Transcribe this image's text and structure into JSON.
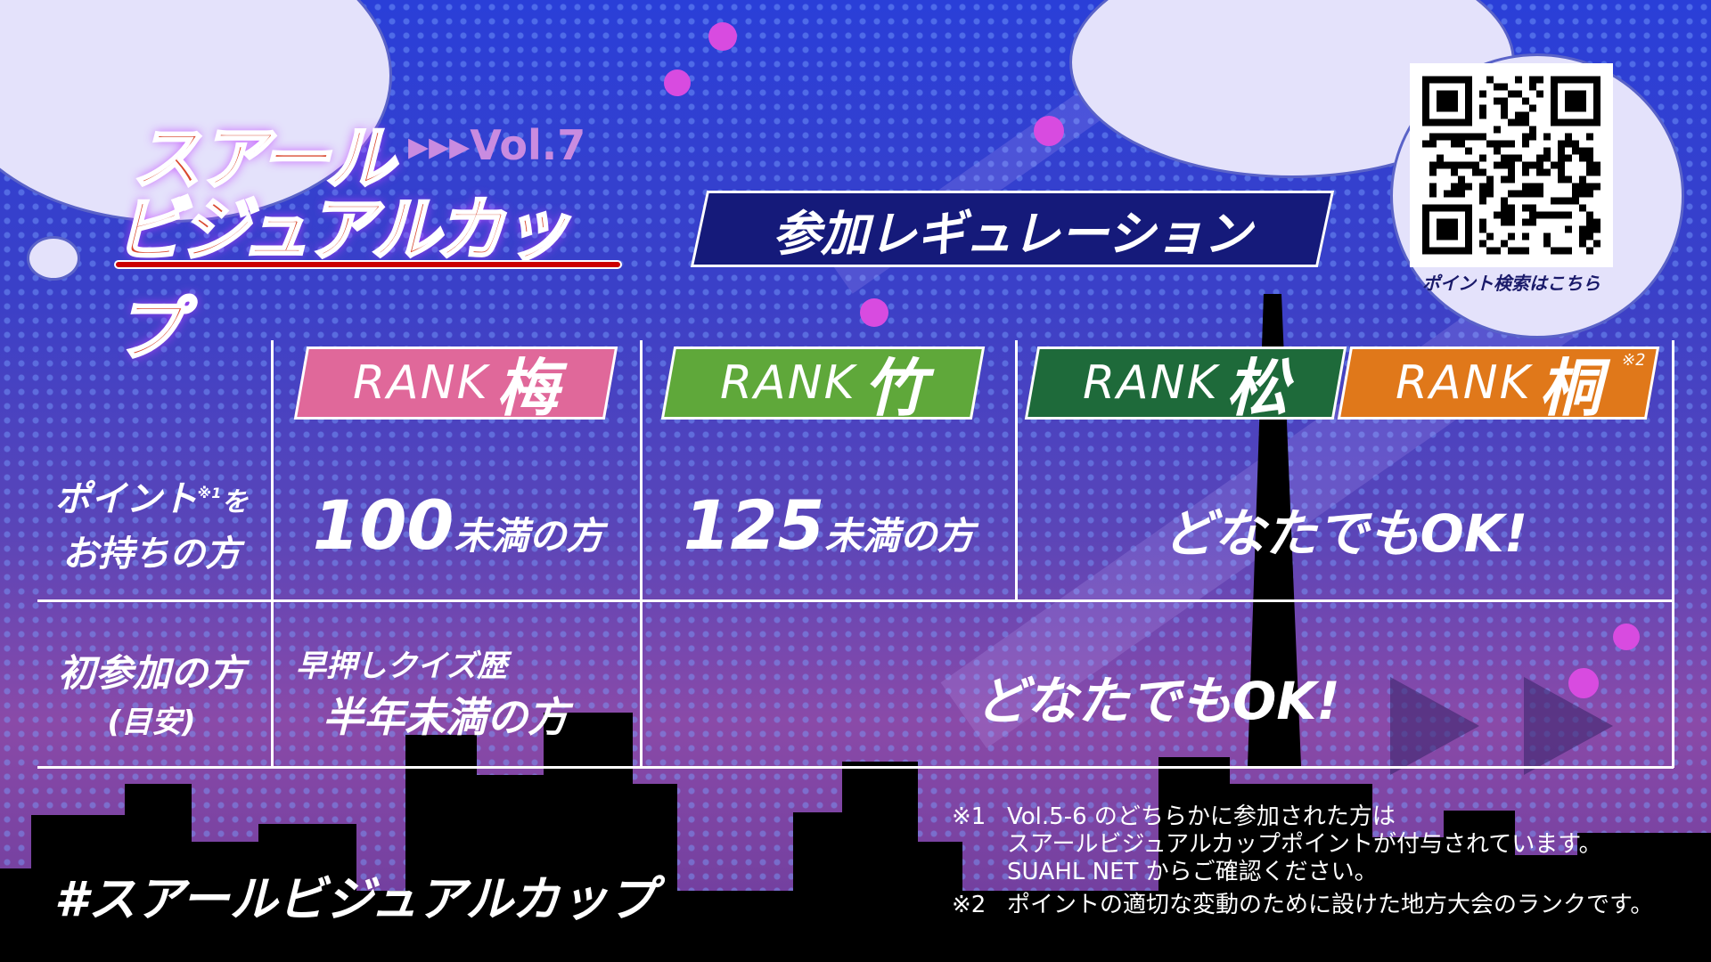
{
  "logo": {
    "line1": "スアール",
    "line2": "ビジュアルカップ",
    "vol": "▸▸▸Vol.7"
  },
  "title": "参加レギュレーション",
  "qr": {
    "caption": "ポイント検索はこちら"
  },
  "ranks": [
    {
      "prefix": "RANK",
      "kanji": "梅",
      "color": "#e0689a",
      "note": ""
    },
    {
      "prefix": "RANK",
      "kanji": "竹",
      "color": "#5fa83a",
      "note": ""
    },
    {
      "prefix": "RANK",
      "kanji": "松",
      "color": "#1e6a3a",
      "note": ""
    },
    {
      "prefix": "RANK",
      "kanji": "桐",
      "color": "#e0781a",
      "note": "※2"
    }
  ],
  "rows": [
    {
      "label_a": "ポイント",
      "label_sup": "※1",
      "label_b": "を",
      "label_c": "お持ちの方",
      "cells": [
        {
          "num": "100",
          "text": "未満の方"
        },
        {
          "num": "125",
          "text": "未満の方"
        },
        {
          "num": "",
          "text": "どなたでもOK!"
        }
      ]
    },
    {
      "label_a": "初参加の方",
      "label_c": "(目安)",
      "cells": [
        {
          "line1": "早押しクイズ歴",
          "line2": "半年未満の方"
        },
        {
          "text": "どなたでもOK!"
        }
      ]
    }
  ],
  "footnotes": [
    {
      "mark": "※1",
      "lines": [
        "Vol.5-6 のどちらかに参加された方は",
        "スアールビジュアルカップポイントが付与されています。",
        "SUAHL NET からご確認ください。"
      ]
    },
    {
      "mark": "※2",
      "lines": [
        "ポイントの適切な変動のために設けた地方大会のランクです。"
      ]
    }
  ],
  "hashtag": "#スアールビジュアルカップ"
}
